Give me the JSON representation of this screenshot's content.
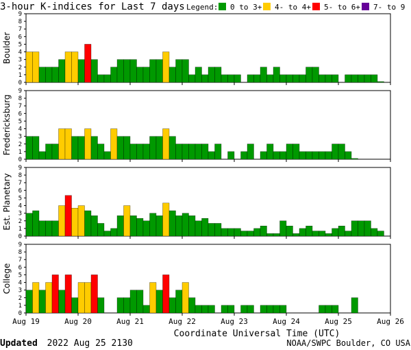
{
  "title": "3-hour K-indices for Last 7 days",
  "legend": {
    "label": "Legend:",
    "items": [
      {
        "label": "0 to 3+",
        "color": "#009900"
      },
      {
        "label": "4- to 4+",
        "color": "#ffcc00"
      },
      {
        "label": "5- to 6+",
        "color": "#ff0000"
      },
      {
        "label": "7- to 9",
        "color": "#660099"
      }
    ]
  },
  "chart_data": {
    "type": "bar",
    "ylim": [
      0,
      9
    ],
    "yticks": [
      "0",
      "1",
      "2",
      "3",
      "4",
      "5",
      "6",
      "7",
      "8",
      "9"
    ],
    "xticks": [
      "Aug 19",
      "Aug 20",
      "Aug 21",
      "Aug 22",
      "Aug 23",
      "Aug 24",
      "Aug 25",
      "Aug 26"
    ],
    "xlabel": "Coordinate Universal Time (UTC)",
    "color_thresholds": {
      "green_below": 3.67,
      "yellow_below": 4.67,
      "red_below": 6.67
    },
    "panels": [
      {
        "name": "Boulder",
        "values": [
          4,
          4,
          2,
          2,
          2,
          3,
          4,
          4,
          3,
          5,
          3,
          1,
          1,
          2,
          3,
          3,
          3,
          2,
          2,
          3,
          3,
          4,
          2,
          3,
          3,
          1,
          2,
          1,
          2,
          2,
          1,
          1,
          1,
          0,
          1,
          1,
          2,
          1,
          2,
          1,
          1,
          1,
          1,
          2,
          2,
          1,
          1,
          1,
          0,
          1,
          1,
          1,
          1,
          1,
          0.1,
          0,
          0
        ]
      },
      {
        "name": "Fredericksburg",
        "values": [
          3,
          3,
          1,
          2,
          2,
          4,
          4,
          3,
          3,
          4,
          3,
          2,
          1,
          4,
          3,
          3,
          2,
          2,
          2,
          3,
          3,
          4,
          3,
          2,
          2,
          2,
          2,
          2,
          1,
          2,
          0,
          1,
          0,
          1,
          2,
          0,
          1,
          2,
          1,
          1,
          2,
          2,
          1,
          1,
          1,
          1,
          1,
          2,
          2,
          1,
          0.1,
          0,
          0,
          0,
          0,
          0
        ]
      },
      {
        "name": "Est. Planetary",
        "values": [
          3,
          3.33,
          2,
          2,
          2,
          4,
          5.33,
          3.67,
          4,
          3.33,
          2.67,
          1.67,
          0.67,
          1,
          2.67,
          4,
          2.67,
          2.33,
          2,
          3,
          2.67,
          4.33,
          3.33,
          2.67,
          3,
          2.67,
          2,
          2.33,
          1.67,
          1.67,
          1,
          1,
          1,
          0.67,
          0.67,
          1,
          1.33,
          0.33,
          0.33,
          2,
          1.33,
          0.33,
          1,
          1.33,
          0.67,
          0.67,
          0.33,
          1,
          1.33,
          0.67,
          2,
          2,
          2,
          1,
          0.67,
          0
        ]
      },
      {
        "name": "College",
        "values": [
          3,
          4,
          3,
          4,
          5,
          3,
          5,
          2,
          4,
          4,
          5,
          2,
          0,
          0,
          2,
          2,
          3,
          3,
          1,
          4,
          3,
          5,
          2,
          3,
          4,
          2,
          1,
          1,
          1,
          0,
          1,
          1,
          0,
          1,
          1,
          0,
          1,
          1,
          1,
          1,
          0,
          0,
          0,
          0,
          0,
          1,
          1,
          1,
          0,
          0,
          2,
          0,
          0,
          0,
          0,
          0
        ]
      }
    ]
  },
  "footer": {
    "updated_label": "Updated",
    "updated_value": "2022 Aug 25 2130",
    "credit": "NOAA/SWPC Boulder, CO USA"
  }
}
